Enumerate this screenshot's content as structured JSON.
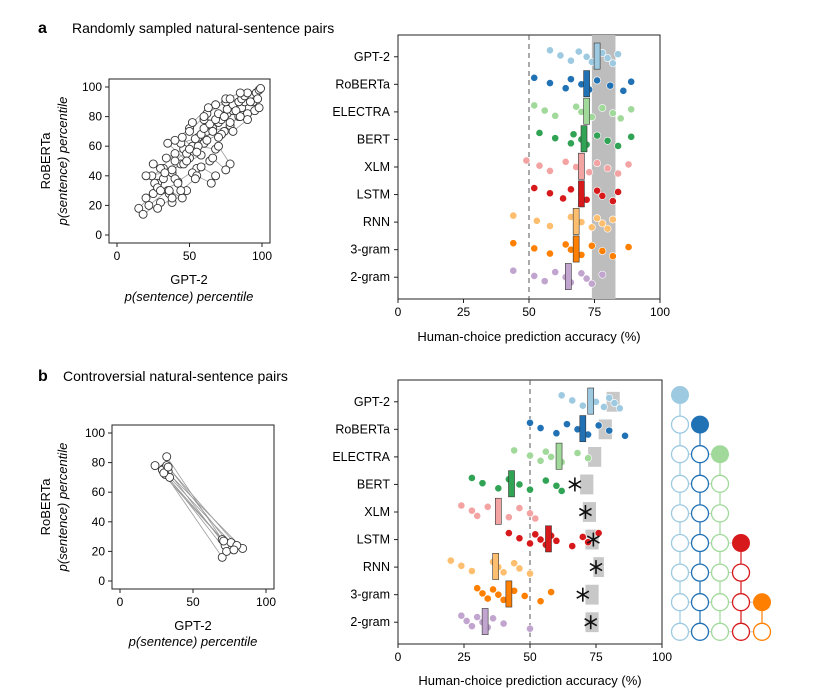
{
  "panel_a": {
    "letter": "a",
    "title": "Randomly sampled natural-sentence pairs",
    "scatter": {
      "xlabel1": "GPT-2",
      "xlabel2": "p(sentence) percentile",
      "ylabel1": "RoBERTa",
      "ylabel2": "p(sentence) percentile",
      "xticks": [
        "0",
        "50",
        "100"
      ],
      "yticks": [
        "0",
        "20",
        "40",
        "60",
        "80",
        "100"
      ]
    },
    "strip": {
      "xlabel": "Human-choice prediction accuracy (%)",
      "xticks": [
        "0",
        "25",
        "50",
        "75",
        "100"
      ]
    }
  },
  "panel_b": {
    "letter": "b",
    "title": "Controversial natural-sentence pairs",
    "scatter": {
      "xlabel1": "GPT-2",
      "xlabel2": "p(sentence) percentile",
      "ylabel1": "RoBERTa",
      "ylabel2": "p(sentence) percentile",
      "xticks": [
        "0",
        "50",
        "100"
      ],
      "yticks": [
        "0",
        "20",
        "40",
        "60",
        "80",
        "100"
      ]
    },
    "strip": {
      "xlabel": "Human-choice prediction accuracy (%)",
      "xticks": [
        "0",
        "25",
        "50",
        "75",
        "100"
      ]
    }
  },
  "chart_data": [
    {
      "type": "scatter",
      "panel": "a",
      "xlabel": "GPT-2 p(sentence) percentile",
      "ylabel": "RoBERTa p(sentence) percentile",
      "xlim": [
        0,
        100
      ],
      "ylim": [
        0,
        100
      ],
      "grid": false,
      "points_connected_in_pairs": true,
      "pairs": [
        [
          [
            15,
            18
          ],
          [
            25,
            28
          ]
        ],
        [
          [
            18,
            14
          ],
          [
            30,
            22
          ]
        ],
        [
          [
            20,
            25
          ],
          [
            28,
            35
          ]
        ],
        [
          [
            22,
            20
          ],
          [
            35,
            30
          ]
        ],
        [
          [
            24,
            40
          ],
          [
            32,
            45
          ]
        ],
        [
          [
            26,
            35
          ],
          [
            38,
            42
          ]
        ],
        [
          [
            28,
            32
          ],
          [
            36,
            28
          ]
        ],
        [
          [
            30,
            45
          ],
          [
            40,
            55
          ]
        ],
        [
          [
            32,
            38
          ],
          [
            44,
            48
          ]
        ],
        [
          [
            34,
            52
          ],
          [
            46,
            58
          ]
        ],
        [
          [
            36,
            30
          ],
          [
            45,
            25
          ]
        ],
        [
          [
            38,
            44
          ],
          [
            50,
            52
          ]
        ],
        [
          [
            40,
            50
          ],
          [
            52,
            60
          ]
        ],
        [
          [
            42,
            36
          ],
          [
            55,
            45
          ]
        ],
        [
          [
            44,
            62
          ],
          [
            56,
            66
          ]
        ],
        [
          [
            46,
            48
          ],
          [
            58,
            54
          ]
        ],
        [
          [
            48,
            55
          ],
          [
            60,
            62
          ]
        ],
        [
          [
            50,
            58
          ],
          [
            62,
            70
          ]
        ],
        [
          [
            52,
            42
          ],
          [
            64,
            50
          ]
        ],
        [
          [
            54,
            65
          ],
          [
            66,
            72
          ]
        ],
        [
          [
            56,
            60
          ],
          [
            68,
            58
          ]
        ],
        [
          [
            58,
            68
          ],
          [
            70,
            76
          ]
        ],
        [
          [
            60,
            72
          ],
          [
            72,
            78
          ]
        ],
        [
          [
            62,
            64
          ],
          [
            74,
            70
          ]
        ],
        [
          [
            64,
            75
          ],
          [
            76,
            82
          ]
        ],
        [
          [
            66,
            70
          ],
          [
            78,
            74
          ]
        ],
        [
          [
            68,
            78
          ],
          [
            80,
            84
          ]
        ],
        [
          [
            70,
            82
          ],
          [
            82,
            88
          ]
        ],
        [
          [
            72,
            68
          ],
          [
            84,
            80
          ]
        ],
        [
          [
            74,
            80
          ],
          [
            86,
            86
          ]
        ],
        [
          [
            76,
            85
          ],
          [
            88,
            90
          ]
        ],
        [
          [
            78,
            76
          ],
          [
            90,
            82
          ]
        ],
        [
          [
            80,
            88
          ],
          [
            92,
            94
          ]
        ],
        [
          [
            82,
            84
          ],
          [
            94,
            90
          ]
        ],
        [
          [
            84,
            90
          ],
          [
            96,
            96
          ]
        ],
        [
          [
            86,
            92
          ],
          [
            98,
            98
          ]
        ],
        [
          [
            88,
            94
          ],
          [
            97,
            92
          ]
        ],
        [
          [
            90,
            96
          ],
          [
            99,
            99
          ]
        ],
        [
          [
            60,
            78
          ],
          [
            70,
            66
          ]
        ],
        [
          [
            45,
            66
          ],
          [
            55,
            56
          ]
        ],
        [
          [
            35,
            62
          ],
          [
            48,
            50
          ]
        ],
        [
          [
            25,
            48
          ],
          [
            40,
            38
          ]
        ],
        [
          [
            70,
            60
          ],
          [
            78,
            48
          ]
        ],
        [
          [
            55,
            40
          ],
          [
            65,
            35
          ]
        ],
        [
          [
            62,
            82
          ],
          [
            75,
            90
          ]
        ],
        [
          [
            40,
            64
          ],
          [
            50,
            72
          ]
        ],
        [
          [
            30,
            30
          ],
          [
            42,
            35
          ]
        ],
        [
          [
            20,
            40
          ],
          [
            33,
            42
          ]
        ],
        [
          [
            80,
            70
          ],
          [
            90,
            78
          ]
        ],
        [
          [
            85,
            80
          ],
          [
            95,
            84
          ]
        ],
        [
          [
            66,
            52
          ],
          [
            75,
            44
          ]
        ],
        [
          [
            50,
            70
          ],
          [
            60,
            80
          ]
        ],
        [
          [
            38,
            22
          ],
          [
            48,
            30
          ]
        ],
        [
          [
            28,
            18
          ],
          [
            38,
            25
          ]
        ],
        [
          [
            92,
            90
          ],
          [
            98,
            86
          ]
        ],
        [
          [
            75,
            92
          ],
          [
            85,
            96
          ]
        ],
        [
          [
            58,
            46
          ],
          [
            68,
            40
          ]
        ],
        [
          [
            44,
            30
          ],
          [
            54,
            38
          ]
        ],
        [
          [
            68,
            88
          ],
          [
            78,
            92
          ]
        ],
        [
          [
            52,
            76
          ],
          [
            63,
            86
          ]
        ]
      ]
    },
    {
      "type": "strip",
      "panel": "a",
      "xlabel": "Human-choice prediction accuracy (%)",
      "xlim": [
        0,
        100
      ],
      "chance_line": 50,
      "noise_ceiling": [
        74,
        83
      ],
      "models": [
        "GPT-2",
        "RoBERTa",
        "ELECTRA",
        "BERT",
        "XLM",
        "LSTM",
        "RNN",
        "3-gram",
        "2-gram"
      ],
      "colors": [
        "#9ecae1",
        "#2171b5",
        "#a1d99b",
        "#31a354",
        "#f4a3a3",
        "#d7191c",
        "#fdbf6f",
        "#ff7f00",
        "#c2a5cf"
      ],
      "means": [
        76,
        72,
        72,
        71,
        70,
        70,
        68,
        68,
        65
      ],
      "subjects": [
        [
          58,
          62,
          66,
          69,
          72,
          74,
          78,
          80,
          82,
          84
        ],
        [
          52,
          58,
          64,
          66,
          70,
          73,
          76,
          81,
          86,
          89
        ],
        [
          52,
          56,
          60,
          68,
          70,
          74,
          78,
          82,
          85,
          89
        ],
        [
          54,
          60,
          66,
          67,
          70,
          72,
          76,
          80,
          84,
          89
        ],
        [
          49,
          54,
          58,
          64,
          68,
          73,
          76,
          80,
          84,
          88
        ],
        [
          52,
          58,
          63,
          66,
          70,
          72,
          76,
          78,
          82,
          84
        ],
        [
          44,
          53,
          58,
          66,
          70,
          74,
          76,
          78,
          80,
          82
        ],
        [
          44,
          52,
          58,
          64,
          66,
          70,
          74,
          78,
          82,
          88
        ],
        [
          44,
          52,
          56,
          60,
          64,
          66,
          70,
          72,
          74,
          78
        ]
      ]
    },
    {
      "type": "scatter",
      "panel": "b",
      "xlabel": "GPT-2 p(sentence) percentile",
      "ylabel": "RoBERTa p(sentence) percentile",
      "xlim": [
        0,
        100
      ],
      "ylim": [
        0,
        100
      ],
      "grid": false,
      "points_connected_in_pairs": true,
      "pairs": [
        [
          [
            24,
            78
          ],
          [
            70,
            28
          ]
        ],
        [
          [
            32,
            84
          ],
          [
            74,
            22
          ]
        ],
        [
          [
            30,
            76
          ],
          [
            84,
            22
          ]
        ],
        [
          [
            33,
            74
          ],
          [
            72,
            24
          ]
        ],
        [
          [
            31,
            72
          ],
          [
            70,
            16
          ]
        ],
        [
          [
            34,
            70
          ],
          [
            76,
            26
          ]
        ],
        [
          [
            29,
            75
          ],
          [
            73,
            20
          ]
        ],
        [
          [
            32,
            78
          ],
          [
            80,
            24
          ]
        ],
        [
          [
            30,
            73
          ],
          [
            71,
            27
          ]
        ],
        [
          [
            33,
            77
          ],
          [
            78,
            21
          ]
        ]
      ]
    },
    {
      "type": "strip",
      "panel": "b",
      "xlabel": "Human-choice prediction accuracy (%)",
      "xlim": [
        0,
        100
      ],
      "chance_line": 50,
      "models": [
        "GPT-2",
        "RoBERTa",
        "ELECTRA",
        "BERT",
        "XLM",
        "LSTM",
        "RNN",
        "3-gram",
        "2-gram"
      ],
      "colors": [
        "#9ecae1",
        "#2171b5",
        "#a1d99b",
        "#31a354",
        "#f4a3a3",
        "#d7191c",
        "#fdbf6f",
        "#ff7f00",
        "#c2a5cf"
      ],
      "means": [
        73,
        70,
        61,
        43,
        38,
        57,
        37,
        42,
        33
      ],
      "noise_ceilings": [
        [
          79,
          84
        ],
        [
          76,
          81
        ],
        [
          72,
          77
        ],
        [
          69,
          74
        ],
        [
          70,
          75
        ],
        [
          71,
          76
        ],
        [
          74,
          78
        ],
        [
          71,
          76
        ],
        [
          71,
          76
        ]
      ],
      "significant_markers": [
        null,
        null,
        null,
        67,
        71,
        74,
        75,
        70,
        73
      ],
      "subjects": [
        [
          62,
          66,
          70,
          73,
          75,
          78,
          80,
          82,
          84
        ],
        [
          50,
          54,
          60,
          64,
          68,
          72,
          76,
          80,
          86
        ],
        [
          44,
          50,
          54,
          56,
          58,
          62,
          68,
          72
        ],
        [
          28,
          32,
          38,
          42,
          46,
          50,
          56,
          60,
          62
        ],
        [
          24,
          28,
          30,
          34,
          38,
          42,
          46,
          50,
          52
        ],
        [
          42,
          46,
          50,
          52,
          54,
          56,
          58,
          60,
          66,
          70,
          72,
          76
        ],
        [
          20,
          24,
          28,
          36,
          38,
          40,
          44,
          46,
          50
        ],
        [
          30,
          32,
          34,
          36,
          38,
          40,
          44,
          48,
          54,
          58
        ],
        [
          24,
          26,
          28,
          30,
          32,
          34,
          36,
          40,
          50
        ]
      ]
    }
  ]
}
